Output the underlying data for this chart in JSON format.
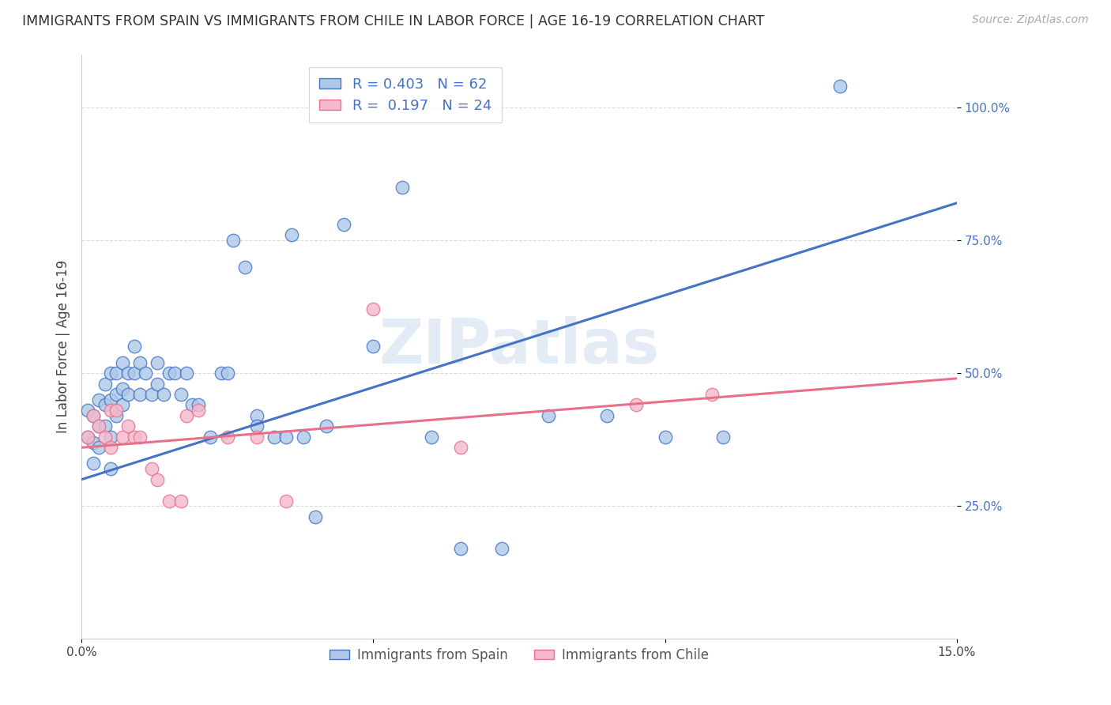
{
  "title": "IMMIGRANTS FROM SPAIN VS IMMIGRANTS FROM CHILE IN LABOR FORCE | AGE 16-19 CORRELATION CHART",
  "source": "Source: ZipAtlas.com",
  "ylabel": "In Labor Force | Age 16-19",
  "x_min": 0.0,
  "x_max": 0.15,
  "y_min": 0.0,
  "y_max": 1.1,
  "y_ticks": [
    0.25,
    0.5,
    0.75,
    1.0
  ],
  "y_tick_labels": [
    "25.0%",
    "50.0%",
    "75.0%",
    "100.0%"
  ],
  "legend_label1": "Immigrants from Spain",
  "legend_label2": "Immigrants from Chile",
  "r1": 0.403,
  "n1": 62,
  "r2": 0.197,
  "n2": 24,
  "color_spain": "#adc8e8",
  "color_chile": "#f5b8cc",
  "line_color_spain": "#4472c4",
  "line_color_chile": "#e8708a",
  "watermark": "ZIPatlas",
  "spain_x": [
    0.001,
    0.001,
    0.002,
    0.002,
    0.002,
    0.003,
    0.003,
    0.003,
    0.004,
    0.004,
    0.004,
    0.005,
    0.005,
    0.005,
    0.005,
    0.006,
    0.006,
    0.006,
    0.007,
    0.007,
    0.007,
    0.008,
    0.008,
    0.009,
    0.009,
    0.01,
    0.01,
    0.011,
    0.012,
    0.013,
    0.013,
    0.014,
    0.015,
    0.016,
    0.017,
    0.018,
    0.019,
    0.02,
    0.022,
    0.024,
    0.025,
    0.026,
    0.028,
    0.03,
    0.03,
    0.033,
    0.035,
    0.036,
    0.038,
    0.04,
    0.042,
    0.045,
    0.05,
    0.055,
    0.06,
    0.065,
    0.072,
    0.08,
    0.09,
    0.1,
    0.11,
    0.13
  ],
  "spain_y": [
    0.38,
    0.43,
    0.42,
    0.37,
    0.33,
    0.45,
    0.4,
    0.36,
    0.48,
    0.44,
    0.4,
    0.5,
    0.45,
    0.38,
    0.32,
    0.5,
    0.46,
    0.42,
    0.52,
    0.47,
    0.44,
    0.5,
    0.46,
    0.55,
    0.5,
    0.52,
    0.46,
    0.5,
    0.46,
    0.52,
    0.48,
    0.46,
    0.5,
    0.5,
    0.46,
    0.5,
    0.44,
    0.44,
    0.38,
    0.5,
    0.5,
    0.75,
    0.7,
    0.42,
    0.4,
    0.38,
    0.38,
    0.76,
    0.38,
    0.23,
    0.4,
    0.78,
    0.55,
    0.85,
    0.38,
    0.17,
    0.17,
    0.42,
    0.42,
    0.38,
    0.38,
    1.04
  ],
  "chile_x": [
    0.001,
    0.002,
    0.003,
    0.004,
    0.005,
    0.005,
    0.006,
    0.007,
    0.008,
    0.009,
    0.01,
    0.012,
    0.013,
    0.015,
    0.017,
    0.018,
    0.02,
    0.025,
    0.03,
    0.035,
    0.05,
    0.065,
    0.095,
    0.108
  ],
  "chile_y": [
    0.38,
    0.42,
    0.4,
    0.38,
    0.43,
    0.36,
    0.43,
    0.38,
    0.4,
    0.38,
    0.38,
    0.32,
    0.3,
    0.26,
    0.26,
    0.42,
    0.43,
    0.38,
    0.38,
    0.26,
    0.62,
    0.36,
    0.44,
    0.46
  ],
  "spain_line_x0": 0.0,
  "spain_line_x1": 0.15,
  "spain_line_y0": 0.3,
  "spain_line_y1": 0.82,
  "chile_line_x0": 0.0,
  "chile_line_x1": 0.15,
  "chile_line_y0": 0.36,
  "chile_line_y1": 0.49
}
